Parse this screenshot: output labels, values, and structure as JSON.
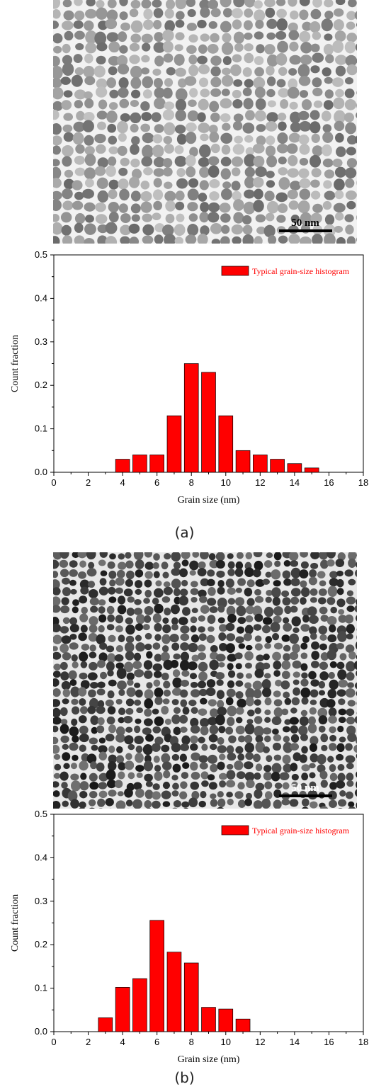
{
  "panels": [
    {
      "label": "(a)",
      "micrograph": {
        "scale_bar_label": "50 nm",
        "background": "#cfcfcf",
        "grain_color": "#8c8c8c",
        "boundary_color": "#f2f2f2"
      },
      "chart_data": {
        "type": "bar",
        "xlabel": "Grain size (nm)",
        "ylabel": "Count fraction",
        "xlim": [
          0,
          18
        ],
        "ylim": [
          0,
          0.5
        ],
        "x_ticks": [
          "0",
          "2",
          "4",
          "6",
          "8",
          "10",
          "12",
          "14",
          "16",
          "18"
        ],
        "y_ticks": [
          "0.0",
          "0.1",
          "0.2",
          "0.3",
          "0.4",
          "0.5"
        ],
        "legend": {
          "label": "Typical grain-size histogram",
          "placement": "top-right"
        },
        "bar_color": "#ff0000",
        "x": [
          4,
          5,
          6,
          7,
          8,
          9,
          10,
          11,
          12,
          13,
          14,
          15
        ],
        "values": [
          0.03,
          0.04,
          0.04,
          0.13,
          0.25,
          0.23,
          0.13,
          0.05,
          0.04,
          0.03,
          0.02,
          0.01
        ]
      }
    },
    {
      "label": "(b)",
      "micrograph": {
        "scale_bar_label": "50 nm",
        "background": "#a8a8a8",
        "grain_color": "#303030",
        "boundary_color": "#e8e8e8"
      },
      "chart_data": {
        "type": "bar",
        "xlabel": "Grain size (nm)",
        "ylabel": "Count fraction",
        "xlim": [
          0,
          18
        ],
        "ylim": [
          0,
          0.5
        ],
        "x_ticks": [
          "0",
          "2",
          "4",
          "6",
          "8",
          "10",
          "12",
          "14",
          "16",
          "18"
        ],
        "y_ticks": [
          "0.0",
          "0.1",
          "0.2",
          "0.3",
          "0.4",
          "0.5"
        ],
        "legend": {
          "label": "Typical grain-size histogram",
          "placement": "top-right"
        },
        "bar_color": "#ff0000",
        "x": [
          3,
          4,
          5,
          6,
          7,
          8,
          9,
          10,
          11
        ],
        "values": [
          0.032,
          0.102,
          0.122,
          0.256,
          0.183,
          0.158,
          0.056,
          0.052,
          0.029
        ]
      }
    }
  ]
}
